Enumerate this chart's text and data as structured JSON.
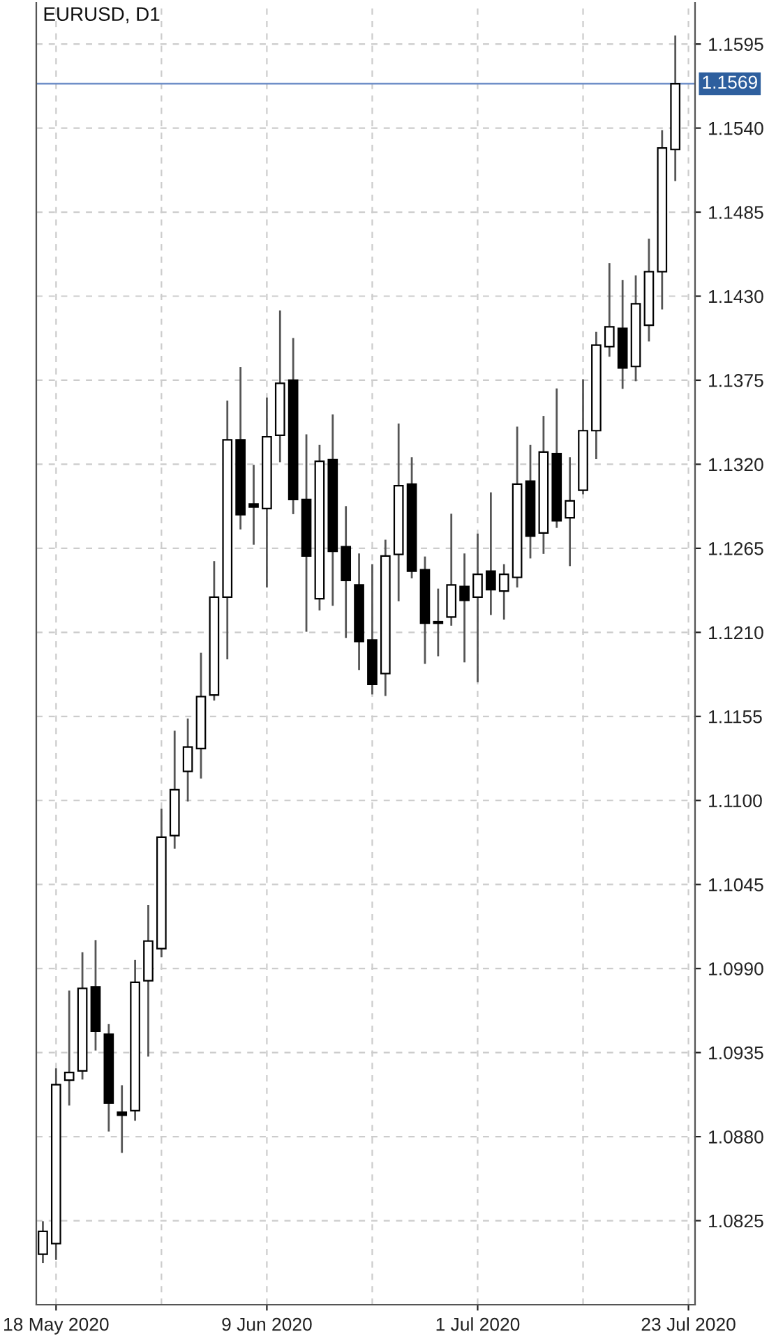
{
  "chart_data": {
    "type": "candlestick",
    "title": "EURUSD, D1",
    "categories": [
      null,
      "18 May 2020",
      null,
      null,
      null,
      null,
      null,
      null,
      null,
      null,
      null,
      null,
      null,
      null,
      null,
      null,
      null,
      "9 Jun 2020",
      null,
      null,
      null,
      null,
      null,
      null,
      null,
      null,
      null,
      null,
      null,
      null,
      null,
      null,
      null,
      "1 Jul 2020",
      null,
      null,
      null,
      null,
      null,
      null,
      null,
      null,
      null,
      null,
      null,
      null,
      null,
      null,
      null,
      "23 Jul 2020"
    ],
    "ohlc": [
      [
        1.0803,
        1.0824,
        1.0798,
        1.0818
      ],
      [
        1.081,
        1.0924,
        1.08,
        1.0914
      ],
      [
        1.0917,
        1.0975,
        1.0901,
        1.0922
      ],
      [
        1.0923,
        1.1,
        1.0918,
        1.0977
      ],
      [
        1.0978,
        1.1008,
        1.0937,
        1.0949
      ],
      [
        1.0947,
        1.0953,
        1.0884,
        1.0902
      ],
      [
        1.0896,
        1.0913,
        1.087,
        1.0894
      ],
      [
        1.0897,
        1.0995,
        1.0891,
        1.0981
      ],
      [
        1.0982,
        1.1031,
        1.0933,
        1.1008
      ],
      [
        1.1003,
        1.1094,
        1.0998,
        1.1076
      ],
      [
        1.1077,
        1.1145,
        1.1069,
        1.1107
      ],
      [
        1.1119,
        1.1153,
        1.11,
        1.1135
      ],
      [
        1.1134,
        1.1196,
        1.1115,
        1.1168
      ],
      [
        1.1169,
        1.1256,
        1.1166,
        1.1233
      ],
      [
        1.1233,
        1.1361,
        1.1193,
        1.1336
      ],
      [
        1.1336,
        1.1383,
        1.1278,
        1.1287
      ],
      [
        1.1294,
        1.1319,
        1.1268,
        1.1292
      ],
      [
        1.1291,
        1.1363,
        1.124,
        1.1338
      ],
      [
        1.1339,
        1.142,
        1.1322,
        1.1373
      ],
      [
        1.1375,
        1.1402,
        1.1288,
        1.1297
      ],
      [
        1.1297,
        1.1339,
        1.1211,
        1.126
      ],
      [
        1.1232,
        1.1332,
        1.1225,
        1.1322
      ],
      [
        1.1323,
        1.1352,
        1.1228,
        1.1263
      ],
      [
        1.1266,
        1.1292,
        1.1207,
        1.1244
      ],
      [
        1.1241,
        1.1261,
        1.1186,
        1.1204
      ],
      [
        1.1205,
        1.1254,
        1.117,
        1.1176
      ],
      [
        1.1183,
        1.127,
        1.1169,
        1.126
      ],
      [
        1.1261,
        1.1346,
        1.1231,
        1.1306
      ],
      [
        1.1307,
        1.1324,
        1.1246,
        1.125
      ],
      [
        1.1251,
        1.1259,
        1.119,
        1.1216
      ],
      [
        1.1217,
        1.1238,
        1.1195,
        1.1216
      ],
      [
        1.122,
        1.1287,
        1.1215,
        1.1241
      ],
      [
        1.124,
        1.1261,
        1.1191,
        1.1231
      ],
      [
        1.1233,
        1.1274,
        1.1178,
        1.1248
      ],
      [
        1.125,
        1.1301,
        1.1222,
        1.1238
      ],
      [
        1.1237,
        1.1254,
        1.1219,
        1.1248
      ],
      [
        1.1246,
        1.1344,
        1.124,
        1.1307
      ],
      [
        1.1309,
        1.1332,
        1.1259,
        1.1273
      ],
      [
        1.1275,
        1.1351,
        1.1262,
        1.1328
      ],
      [
        1.1327,
        1.1369,
        1.1279,
        1.1283
      ],
      [
        1.1285,
        1.1324,
        1.1254,
        1.1296
      ],
      [
        1.1303,
        1.1375,
        1.1301,
        1.1342
      ],
      [
        1.1342,
        1.1406,
        1.1324,
        1.1398
      ],
      [
        1.1397,
        1.1451,
        1.1391,
        1.141
      ],
      [
        1.1409,
        1.144,
        1.137,
        1.1383
      ],
      [
        1.1384,
        1.1443,
        1.1375,
        1.1425
      ],
      [
        1.1411,
        1.1467,
        1.1401,
        1.1446
      ],
      [
        1.1446,
        1.1538,
        1.1422,
        1.1527
      ],
      [
        1.1526,
        1.16,
        1.1506,
        1.1569
      ],
      null
    ],
    "ylim": [
      1.077,
      1.1622
    ],
    "yticks": [
      1.0825,
      {
        "value": 1.088,
        "label": "1.0880"
      },
      1.0935,
      {
        "value": 1.099,
        "label": "1.0990"
      },
      1.1045,
      {
        "value": 1.11,
        "label": "1.1100"
      },
      1.1155,
      {
        "value": 1.121,
        "label": "1.1210"
      },
      1.1265,
      {
        "value": 1.132,
        "label": "1.1320"
      },
      1.1375,
      {
        "value": 1.143,
        "label": "1.1430"
      },
      1.1485,
      {
        "value": 1.154,
        "label": "1.1540"
      },
      1.1595
    ],
    "ref_lines": [
      {
        "axis": "y",
        "value": 1.1569,
        "label": "1.1569",
        "color": "#6f8fc8",
        "line_style": "solid"
      }
    ],
    "grid": true
  }
}
